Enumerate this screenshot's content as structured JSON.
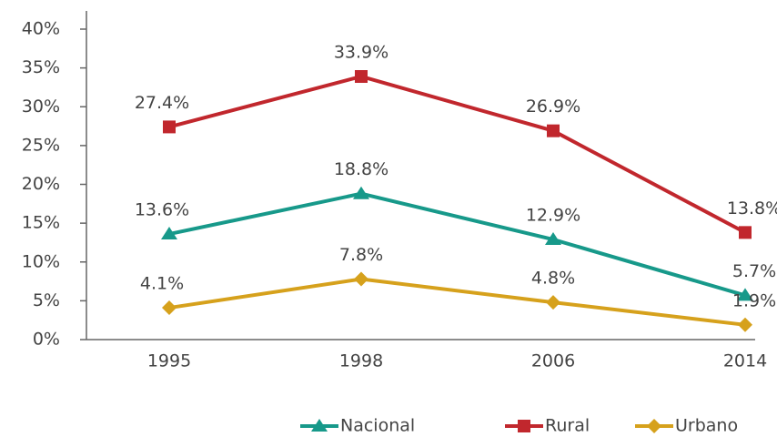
{
  "chart_data": {
    "type": "line",
    "categories": [
      "1995",
      "1998",
      "2006",
      "2014"
    ],
    "series": [
      {
        "name": "Nacional",
        "color": "#17998a",
        "marker": "triangle",
        "values": [
          13.6,
          18.8,
          12.9,
          5.7
        ],
        "value_labels": [
          "13.6%",
          "18.8%",
          "12.9%",
          "5.7%"
        ]
      },
      {
        "name": "Rural",
        "color": "#c1272d",
        "marker": "square",
        "values": [
          27.4,
          33.9,
          26.9,
          13.8
        ],
        "value_labels": [
          "27.4%",
          "33.9%",
          "26.9%",
          "13.8%"
        ]
      },
      {
        "name": "Urbano",
        "color": "#d6a11c",
        "marker": "diamond",
        "values": [
          4.1,
          7.8,
          4.8,
          1.9
        ],
        "value_labels": [
          "4.1%",
          "7.8%",
          "4.8%",
          "1.9%"
        ]
      }
    ],
    "ylim": [
      0,
      40
    ],
    "yticks": [
      {
        "value": 0,
        "label": "0%"
      },
      {
        "value": 5,
        "label": "5%"
      },
      {
        "value": 10,
        "label": "10%"
      },
      {
        "value": 15,
        "label": "15%"
      },
      {
        "value": 20,
        "label": "20%"
      },
      {
        "value": 25,
        "label": "25%"
      },
      {
        "value": 30,
        "label": "30%"
      },
      {
        "value": 35,
        "label": "35%"
      },
      {
        "value": 40,
        "label": "40%"
      }
    ],
    "legend": "bottom"
  }
}
